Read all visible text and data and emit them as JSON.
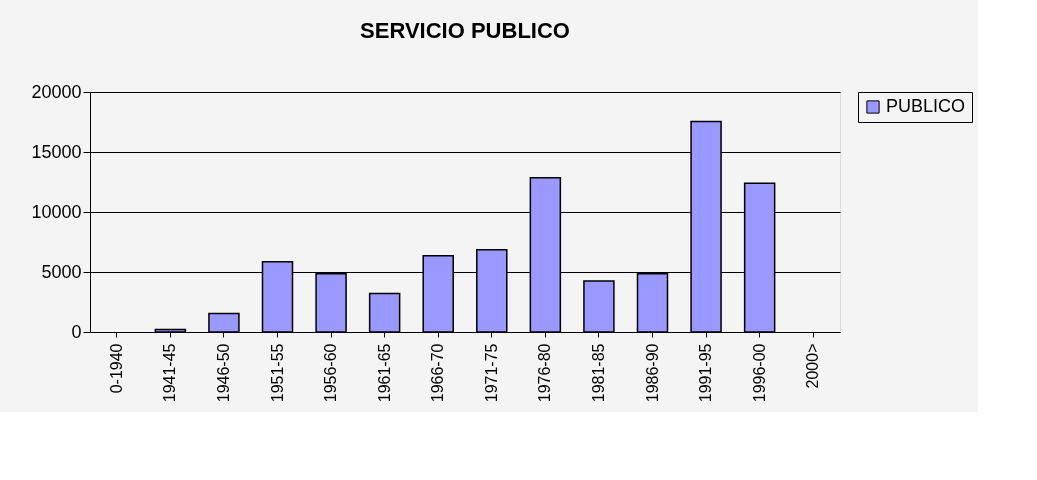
{
  "chart_data": {
    "type": "bar",
    "title": "SERVICIO PUBLICO",
    "categories": [
      "0-1940",
      "1941-45",
      "1946-50",
      "1951-55",
      "1956-60",
      "1961-65",
      "1966-70",
      "1971-75",
      "1976-80",
      "1981-85",
      "1986-90",
      "1991-95",
      "1996-00",
      "2000>"
    ],
    "series": [
      {
        "name": "PUBLICO",
        "color": "#9999ff",
        "values": [
          null,
          200,
          1550,
          5850,
          4850,
          3200,
          6350,
          6850,
          12850,
          4250,
          4850,
          17550,
          12400,
          null
        ]
      }
    ],
    "ylim": [
      0,
      20000
    ],
    "yticks": [
      0,
      5000,
      10000,
      15000,
      20000
    ],
    "grid": "y",
    "legend": "right"
  }
}
